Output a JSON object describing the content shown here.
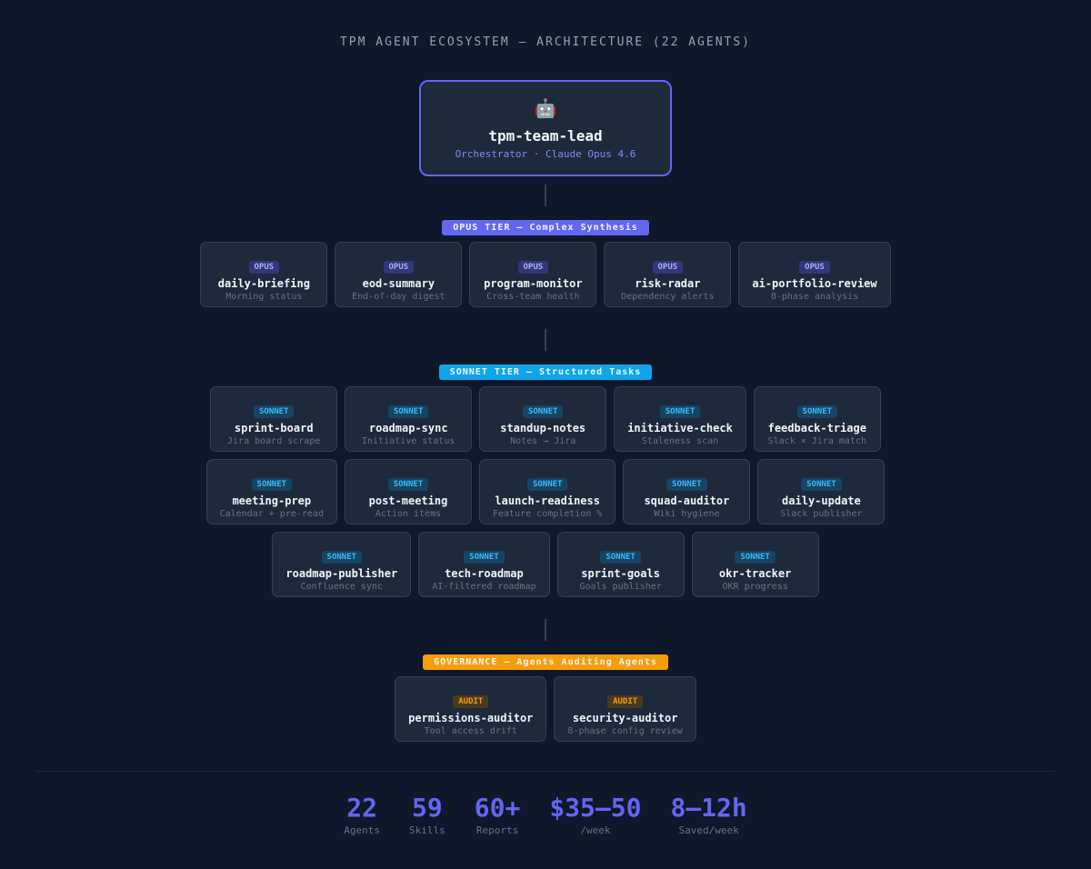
{
  "title": "TPM AGENT ECOSYSTEM — ARCHITECTURE (22 AGENTS)",
  "colors": {
    "background": "#0f172a",
    "card": "#1e293b",
    "opus": "#6366f1",
    "sonnet": "#0ea5e9",
    "governance": "#f59e0b"
  },
  "lead": {
    "icon": "🤖",
    "icon_name": "robot-icon",
    "name": "tpm-team-lead",
    "subtitle": "Orchestrator · Claude Opus 4.6"
  },
  "tiers": [
    {
      "label": "OPUS TIER — Complex Synthesis",
      "color": "#6366f1",
      "tag": "OPUS",
      "kind": "opus",
      "rows": [
        [
          {
            "name": "daily-briefing",
            "desc": "Morning status"
          },
          {
            "name": "eod-summary",
            "desc": "End-of-day digest"
          },
          {
            "name": "program-monitor",
            "desc": "Cross-team health"
          },
          {
            "name": "risk-radar",
            "desc": "Dependency alerts"
          },
          {
            "name": "ai-portfolio-review",
            "desc": "8-phase analysis"
          }
        ]
      ]
    },
    {
      "label": "SONNET TIER — Structured Tasks",
      "color": "#0ea5e9",
      "tag": "SONNET",
      "kind": "sonnet",
      "rows": [
        [
          {
            "name": "sprint-board",
            "desc": "Jira board scrape"
          },
          {
            "name": "roadmap-sync",
            "desc": "Initiative status"
          },
          {
            "name": "standup-notes",
            "desc": "Notes → Jira"
          },
          {
            "name": "initiative-check",
            "desc": "Staleness scan"
          },
          {
            "name": "feedback-triage",
            "desc": "Slack × Jira match"
          }
        ],
        [
          {
            "name": "meeting-prep",
            "desc": "Calendar + pre-read"
          },
          {
            "name": "post-meeting",
            "desc": "Action items"
          },
          {
            "name": "launch-readiness",
            "desc": "Feature completion %"
          },
          {
            "name": "squad-auditor",
            "desc": "Wiki hygiene"
          },
          {
            "name": "daily-update",
            "desc": "Slack publisher"
          }
        ],
        [
          {
            "name": "roadmap-publisher",
            "desc": "Confluence sync"
          },
          {
            "name": "tech-roadmap",
            "desc": "AI-filtered roadmap"
          },
          {
            "name": "sprint-goals",
            "desc": "Goals publisher"
          },
          {
            "name": "okr-tracker",
            "desc": "OKR progress"
          }
        ]
      ]
    },
    {
      "label": "GOVERNANCE — Agents Auditing Agents",
      "color": "#f59e0b",
      "tag": "AUDIT",
      "kind": "audit",
      "rows": [
        [
          {
            "name": "permissions-auditor",
            "desc": "Tool access drift"
          },
          {
            "name": "security-auditor",
            "desc": "8-phase config review"
          }
        ]
      ]
    }
  ],
  "stats": [
    {
      "value": "22",
      "label": "Agents"
    },
    {
      "value": "59",
      "label": "Skills"
    },
    {
      "value": "60+",
      "label": "Reports"
    },
    {
      "value": "$35–50",
      "label": "/week"
    },
    {
      "value": "8–12h",
      "label": "Saved/week"
    }
  ]
}
